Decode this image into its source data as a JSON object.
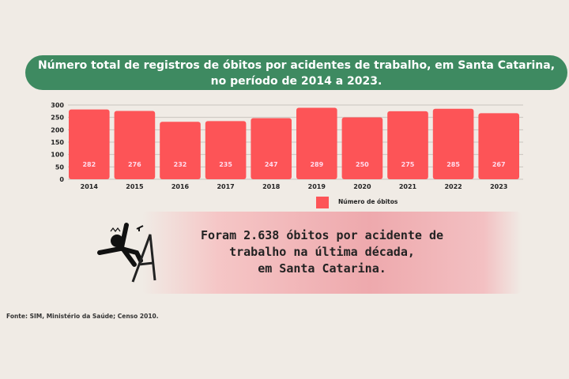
{
  "title_line1": "Número total de registros de óbitos por acidentes de trabalho, em Santa Catarina,",
  "title_line2": "no período de 2014 a 2023.",
  "message": [
    "Foram 2.638 óbitos por acidente de",
    "trabalho na última década,",
    "em Santa Catarina."
  ],
  "source": "Fonte: SIM, Ministério da Saúde; Censo 2010.",
  "colors": {
    "bar": "#fd5457",
    "title_bg": "#3e8a61"
  },
  "icon": "person-falling-from-ladder",
  "chart_data": {
    "type": "bar",
    "categories": [
      "2014",
      "2015",
      "2016",
      "2017",
      "2018",
      "2019",
      "2020",
      "2021",
      "2022",
      "2023"
    ],
    "series": [
      {
        "name": "Número de óbitos",
        "values": [
          282,
          276,
          232,
          235,
          247,
          289,
          250,
          275,
          285,
          267
        ]
      }
    ],
    "ylim": [
      0,
      300
    ],
    "yticks": [
      0,
      50,
      100,
      150,
      200,
      250,
      300
    ],
    "grid": true,
    "legend": "bottom"
  }
}
